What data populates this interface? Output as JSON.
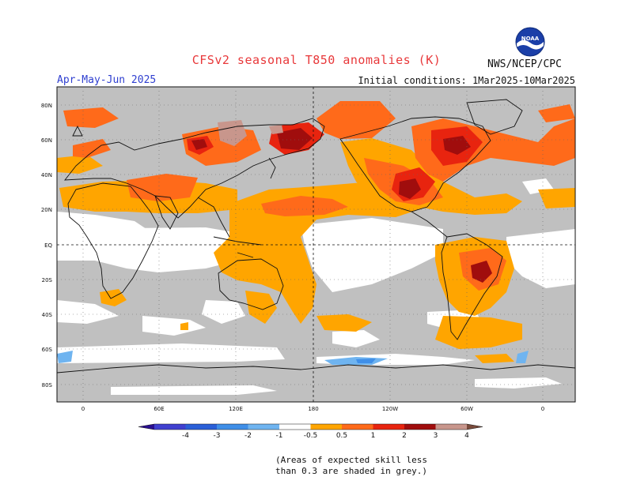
{
  "title": "CFSv2 seasonal T850 anomalies (K)",
  "period": "Apr-May-Jun 2025",
  "initial_conditions": "Initial conditions: 1Mar2025-10Mar2025",
  "agency": "NWS/NCEP/CPC",
  "logo_label": "NOAA",
  "lat_labels": [
    "80N",
    "60N",
    "40N",
    "20N",
    "EQ",
    "20S",
    "40S",
    "60S",
    "80S"
  ],
  "lon_labels": [
    "0",
    "60E",
    "120E",
    "180",
    "120W",
    "60W",
    "0"
  ],
  "colorbar": {
    "labels": [
      "-4",
      "-3",
      "-2",
      "-1",
      "-0.5",
      "0.5",
      "1",
      "2",
      "3",
      "4"
    ],
    "colors": [
      "#2a0f8f",
      "#4040d0",
      "#2a5fd8",
      "#3f8fe8",
      "#6fb4f0",
      "#ffffff",
      "#ffa500",
      "#ff6a1a",
      "#e8240f",
      "#a00d0d",
      "#c8968c",
      "#7a4b3c"
    ]
  },
  "skill_note_line1": "(Areas of expected skill less",
  "skill_note_line2": "than 0.3 are shaded in grey.)"
}
